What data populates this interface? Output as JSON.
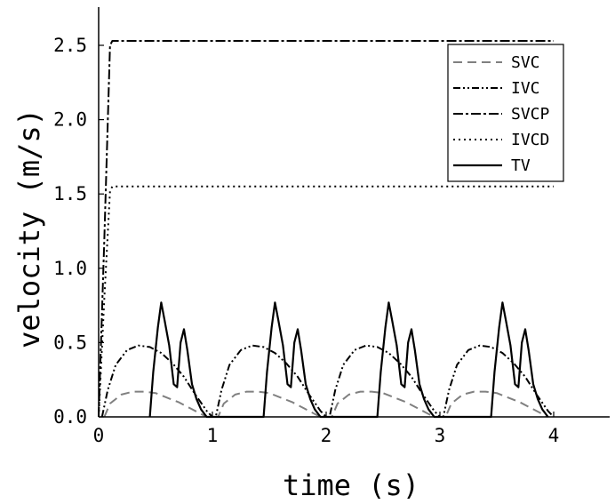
{
  "chart_data": {
    "type": "line",
    "xlabel": "time (s)",
    "ylabel": "velocity (m/s)",
    "xlim": [
      0,
      4.5
    ],
    "ylim": [
      0,
      2.75
    ],
    "xticks": [
      0,
      1,
      2,
      3,
      4
    ],
    "yticks": [
      0.0,
      0.5,
      1.0,
      1.5,
      2.0,
      2.5
    ],
    "xtick_labels": [
      "0",
      "1",
      "2",
      "3",
      "4"
    ],
    "ytick_labels": [
      "0.0",
      "0.5",
      "1.0",
      "1.5",
      "2.0",
      "2.5"
    ],
    "grid": false,
    "legend_position": "top-right",
    "series": [
      {
        "name": "SVC",
        "style": "dashed",
        "color": "#808080",
        "x": [
          0.05,
          0.1,
          0.2,
          0.3,
          0.4,
          0.5,
          0.6,
          0.7,
          0.8,
          0.9,
          0.95,
          1.05,
          1.1,
          1.2,
          1.3,
          1.4,
          1.5,
          1.6,
          1.7,
          1.8,
          1.9,
          1.95,
          2.05,
          2.1,
          2.2,
          2.3,
          2.4,
          2.5,
          2.6,
          2.7,
          2.8,
          2.9,
          2.95,
          3.05,
          3.1,
          3.2,
          3.3,
          3.4,
          3.5,
          3.6,
          3.7,
          3.8,
          3.9,
          3.95
        ],
        "y": [
          0.0,
          0.09,
          0.15,
          0.17,
          0.17,
          0.16,
          0.13,
          0.1,
          0.06,
          0.02,
          0.0,
          0.0,
          0.09,
          0.15,
          0.17,
          0.17,
          0.16,
          0.13,
          0.1,
          0.06,
          0.02,
          0.0,
          0.0,
          0.09,
          0.15,
          0.17,
          0.17,
          0.16,
          0.13,
          0.1,
          0.06,
          0.02,
          0.0,
          0.0,
          0.09,
          0.15,
          0.17,
          0.17,
          0.16,
          0.13,
          0.1,
          0.06,
          0.02,
          0.0
        ]
      },
      {
        "name": "IVC",
        "style": "dash-dot-dot",
        "color": "#000000",
        "x": [
          0.03,
          0.08,
          0.15,
          0.25,
          0.35,
          0.45,
          0.55,
          0.65,
          0.75,
          0.85,
          0.95,
          1.0,
          1.03,
          1.08,
          1.15,
          1.25,
          1.35,
          1.45,
          1.55,
          1.65,
          1.75,
          1.85,
          1.95,
          2.0,
          2.03,
          2.08,
          2.15,
          2.25,
          2.35,
          2.45,
          2.55,
          2.65,
          2.75,
          2.85,
          2.95,
          3.0,
          3.03,
          3.08,
          3.15,
          3.25,
          3.35,
          3.45,
          3.55,
          3.65,
          3.75,
          3.85,
          3.95,
          4.0
        ],
        "y": [
          0.0,
          0.18,
          0.35,
          0.45,
          0.48,
          0.47,
          0.43,
          0.36,
          0.27,
          0.15,
          0.04,
          0.0,
          0.0,
          0.18,
          0.35,
          0.45,
          0.48,
          0.47,
          0.43,
          0.36,
          0.27,
          0.15,
          0.04,
          0.0,
          0.0,
          0.18,
          0.35,
          0.45,
          0.48,
          0.47,
          0.43,
          0.36,
          0.27,
          0.15,
          0.04,
          0.0,
          0.0,
          0.18,
          0.35,
          0.45,
          0.48,
          0.47,
          0.43,
          0.36,
          0.27,
          0.15,
          0.04,
          0.0
        ]
      },
      {
        "name": "SVCP",
        "style": "dash-dot",
        "color": "#000000",
        "x": [
          0.0,
          0.05,
          0.1,
          0.12,
          4.0
        ],
        "y": [
          0.0,
          1.2,
          2.5,
          2.53,
          2.53
        ]
      },
      {
        "name": "IVCD",
        "style": "dotted",
        "color": "#000000",
        "x": [
          0.0,
          0.05,
          0.1,
          0.12,
          4.0
        ],
        "y": [
          0.0,
          0.8,
          1.52,
          1.55,
          1.55
        ]
      },
      {
        "name": "TV",
        "style": "solid",
        "color": "#000000",
        "x": [
          0.45,
          0.48,
          0.52,
          0.55,
          0.58,
          0.62,
          0.66,
          0.69,
          0.72,
          0.75,
          0.78,
          0.82,
          0.86,
          0.9,
          0.95,
          1.45,
          1.48,
          1.52,
          1.55,
          1.58,
          1.62,
          1.66,
          1.69,
          1.72,
          1.75,
          1.78,
          1.82,
          1.86,
          1.9,
          1.95,
          2.45,
          2.48,
          2.52,
          2.55,
          2.58,
          2.62,
          2.66,
          2.69,
          2.72,
          2.75,
          2.78,
          2.82,
          2.86,
          2.9,
          2.95,
          3.45,
          3.48,
          3.52,
          3.55,
          3.58,
          3.62,
          3.66,
          3.69,
          3.72,
          3.75,
          3.78,
          3.82,
          3.86,
          3.9,
          3.95
        ],
        "y": [
          0.0,
          0.3,
          0.6,
          0.77,
          0.65,
          0.48,
          0.22,
          0.2,
          0.5,
          0.59,
          0.45,
          0.22,
          0.12,
          0.05,
          0.0,
          0.0,
          0.3,
          0.6,
          0.77,
          0.65,
          0.48,
          0.22,
          0.2,
          0.5,
          0.59,
          0.45,
          0.22,
          0.12,
          0.05,
          0.0,
          0.0,
          0.3,
          0.6,
          0.77,
          0.65,
          0.48,
          0.22,
          0.2,
          0.5,
          0.59,
          0.45,
          0.22,
          0.12,
          0.05,
          0.0,
          0.0,
          0.3,
          0.6,
          0.77,
          0.65,
          0.48,
          0.22,
          0.2,
          0.5,
          0.59,
          0.45,
          0.22,
          0.12,
          0.05,
          0.0
        ]
      }
    ]
  }
}
